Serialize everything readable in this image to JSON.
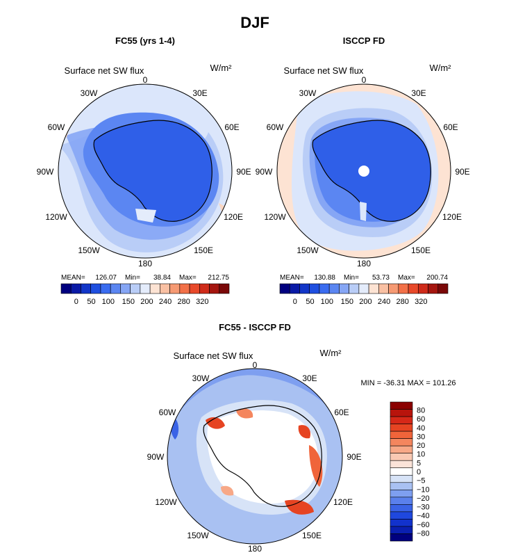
{
  "figure_title": "DJF",
  "chart_data": [
    {
      "type": "heatmap",
      "projection": "south-polar-stereographic",
      "title": "FC55 (yrs 1-4)",
      "subtitle": "Surface net SW flux",
      "units_label": "W/m²",
      "longitude_labels": [
        "0",
        "30E",
        "60E",
        "90E",
        "120E",
        "150E",
        "180",
        "150W",
        "120W",
        "90W",
        "60W",
        "30W"
      ],
      "stats": [
        {
          "label": "MEAN=",
          "value": "126.07"
        },
        {
          "label": "Min=",
          "value": "38.84"
        },
        {
          "label": "Max=",
          "value": "212.75"
        }
      ],
      "colorbar": {
        "orientation": "horizontal",
        "colors": [
          "#00007f",
          "#0a1aa6",
          "#1236c8",
          "#1f4fe0",
          "#3a6cf0",
          "#5b86f2",
          "#86a6f5",
          "#b9cdf7",
          "#e4ecfb",
          "#fde3d3",
          "#f9c0a3",
          "#f69a73",
          "#f27048",
          "#e8492a",
          "#cf2b1a",
          "#a5160f",
          "#7a0808"
        ],
        "tick_labels": [
          "0",
          "50",
          "100",
          "150",
          "200",
          "240",
          "280",
          "320"
        ]
      }
    },
    {
      "type": "heatmap",
      "projection": "south-polar-stereographic",
      "title": "ISCCP FD",
      "subtitle": "Surface net SW flux",
      "units_label": "W/m²",
      "longitude_labels": [
        "0",
        "30E",
        "60E",
        "90E",
        "120E",
        "150E",
        "180",
        "150W",
        "120W",
        "90W",
        "60W",
        "30W"
      ],
      "stats": [
        {
          "label": "MEAN=",
          "value": "130.88"
        },
        {
          "label": "Min=",
          "value": "53.73"
        },
        {
          "label": "Max=",
          "value": "200.74"
        }
      ],
      "colorbar": {
        "orientation": "horizontal",
        "colors": [
          "#00007f",
          "#0a1aa6",
          "#1236c8",
          "#1f4fe0",
          "#3a6cf0",
          "#5b86f2",
          "#86a6f5",
          "#b9cdf7",
          "#e4ecfb",
          "#fde3d3",
          "#f9c0a3",
          "#f69a73",
          "#f27048",
          "#e8492a",
          "#cf2b1a",
          "#a5160f",
          "#7a0808"
        ],
        "tick_labels": [
          "0",
          "50",
          "100",
          "150",
          "200",
          "240",
          "280",
          "320"
        ]
      }
    },
    {
      "type": "heatmap",
      "projection": "south-polar-stereographic",
      "title": "FC55 - ISCCP FD",
      "subtitle": "Surface net SW flux",
      "units_label": "W/m²",
      "longitude_labels": [
        "0",
        "30E",
        "60E",
        "90E",
        "120E",
        "150E",
        "180",
        "150W",
        "120W",
        "90W",
        "60W",
        "30W"
      ],
      "stats_text": "MIN = -36.31  MAX = 101.26",
      "colorbar": {
        "orientation": "vertical",
        "colors": [
          "#8b0000",
          "#b8140c",
          "#d62818",
          "#e64422",
          "#f0643a",
          "#f4865e",
          "#f7a887",
          "#f9c9b3",
          "#fbe3d8",
          "#ffffff",
          "#d7e3f7",
          "#a9c1f2",
          "#7e9ff0",
          "#5a80ec",
          "#3a63e6",
          "#1f48de",
          "#1232cc",
          "#0a1fb0",
          "#00007f"
        ],
        "tick_labels": [
          "80",
          "60",
          "40",
          "30",
          "20",
          "10",
          "5",
          "0",
          "−5",
          "−10",
          "−20",
          "−30",
          "−40",
          "−60",
          "−80"
        ]
      }
    }
  ]
}
